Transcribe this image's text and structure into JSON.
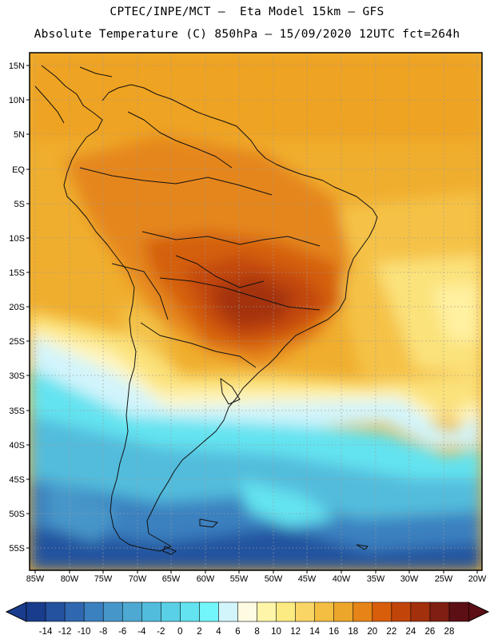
{
  "header": {
    "line1": "CPTEC/INPE/MCT –  Eta Model 15km – GFS",
    "line2": "Absolute Temperature (C) 850hPa – 15/09/2020 12UTC fct=264h"
  },
  "map": {
    "lat_labels": [
      "15N",
      "10N",
      "5N",
      "EQ",
      "5S",
      "10S",
      "15S",
      "20S",
      "25S",
      "30S",
      "35S",
      "40S",
      "45S",
      "50S",
      "55S"
    ],
    "lon_labels": [
      "85W",
      "80W",
      "75W",
      "70W",
      "65W",
      "60W",
      "55W",
      "50W",
      "45W",
      "40W",
      "35W",
      "30W",
      "25W",
      "20W"
    ]
  },
  "colorbar": {
    "labels": [
      "-14",
      "-12",
      "-10",
      "-8",
      "-6",
      "-4",
      "-2",
      "0",
      "2",
      "4",
      "6",
      "8",
      "10",
      "12",
      "14",
      "16",
      "18",
      "20",
      "22",
      "24",
      "26",
      "28"
    ],
    "colors": [
      "#1a3c8c",
      "#24529f",
      "#2f68b0",
      "#3b80bf",
      "#4796c9",
      "#4ea9d2",
      "#52bcdc",
      "#5ad0e6",
      "#63e3f0",
      "#72f5fb",
      "#d2f4fb",
      "#fffbe2",
      "#fff5a8",
      "#fcea82",
      "#f8d565",
      "#f3be42",
      "#eca62a",
      "#e68418",
      "#d85e0c",
      "#c14508",
      "#a2300c",
      "#7e1f12",
      "#5c0f14"
    ],
    "end_low_color": "#1a3c8c",
    "end_high_color": "#5c0f14"
  }
}
